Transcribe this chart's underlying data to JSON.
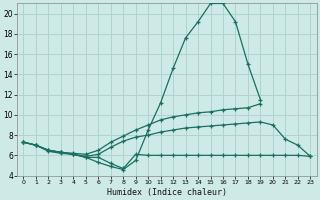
{
  "xlabel": "Humidex (Indice chaleur)",
  "background_color": "#ceeae6",
  "grid_color": "#afd4cf",
  "line_color": "#1a6e62",
  "x_values": [
    0,
    1,
    2,
    3,
    4,
    5,
    6,
    7,
    8,
    9,
    10,
    11,
    12,
    13,
    14,
    15,
    16,
    17,
    18,
    19,
    20,
    21,
    22,
    23
  ],
  "lines": [
    [
      7.3,
      7.0,
      6.4,
      6.2,
      6.1,
      5.8,
      5.3,
      4.9,
      4.6,
      5.5,
      8.5,
      11.2,
      14.6,
      17.6,
      19.2,
      21.0,
      21.0,
      19.2,
      15.0,
      11.5,
      null,
      null,
      null,
      null
    ],
    [
      7.3,
      7.0,
      6.5,
      6.3,
      6.2,
      6.1,
      6.5,
      7.3,
      7.9,
      8.5,
      9.0,
      9.5,
      9.8,
      10.0,
      10.2,
      10.3,
      10.5,
      10.6,
      10.7,
      11.1,
      null,
      null,
      null,
      null
    ],
    [
      7.3,
      7.0,
      6.5,
      6.3,
      6.1,
      5.9,
      6.1,
      6.8,
      7.4,
      7.8,
      8.0,
      8.3,
      8.5,
      8.7,
      8.8,
      8.9,
      9.0,
      9.1,
      9.2,
      9.3,
      9.0,
      7.6,
      7.0,
      5.9
    ],
    [
      7.3,
      7.0,
      6.5,
      6.3,
      6.1,
      5.8,
      5.8,
      5.2,
      4.7,
      6.1,
      6.0,
      6.0,
      6.0,
      6.0,
      6.0,
      6.0,
      6.0,
      6.0,
      6.0,
      6.0,
      6.0,
      6.0,
      6.0,
      5.9
    ]
  ],
  "ylim": [
    4,
    21
  ],
  "yticks": [
    4,
    6,
    8,
    10,
    12,
    14,
    16,
    18,
    20
  ],
  "xlim": [
    -0.5,
    23.5
  ],
  "figsize": [
    3.2,
    2.0
  ],
  "dpi": 100
}
